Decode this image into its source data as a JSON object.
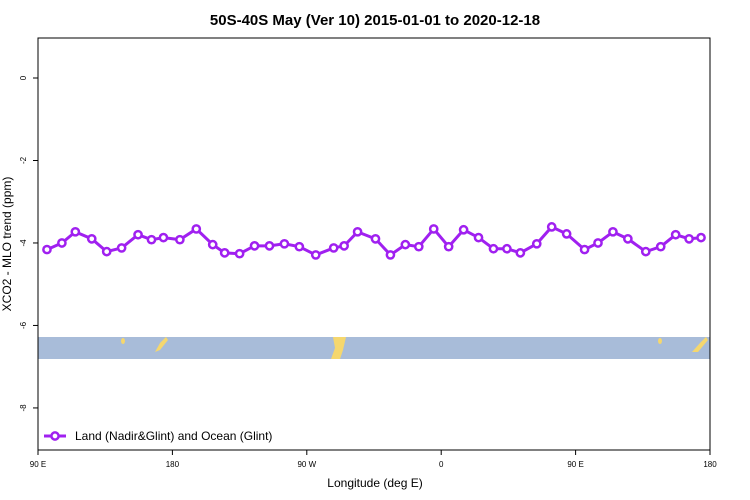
{
  "chart_data": {
    "type": "line",
    "title": "50S-40S May (Ver 10)   2015-01-01 to 2020-12-18",
    "x_label": "Longitude (deg E)",
    "y_label": "XCO2 - MLO trend (ppm)",
    "x": [
      96,
      106,
      115,
      126,
      136,
      146,
      157,
      166,
      174,
      185,
      196,
      207,
      215,
      225,
      235,
      245,
      255,
      265,
      276,
      288,
      295,
      304,
      316,
      326,
      336,
      345,
      355,
      365,
      375,
      385,
      395,
      404,
      413,
      424,
      434,
      444,
      456,
      465,
      475,
      485,
      497,
      507,
      517,
      526,
      534
    ],
    "series": [
      {
        "name": "Land (Nadir&Glint) and Ocean (Glint)",
        "color": "#a020f0",
        "values": [
          -4.16,
          -4.0,
          -3.73,
          -3.9,
          -4.21,
          -4.12,
          -3.8,
          -3.92,
          -3.87,
          -3.92,
          -3.66,
          -4.04,
          -4.24,
          -4.26,
          -4.07,
          -4.07,
          -4.02,
          -4.09,
          -4.29,
          -4.12,
          -4.07,
          -3.73,
          -3.9,
          -4.29,
          -4.04,
          -4.09,
          -3.66,
          -4.09,
          -3.68,
          -3.87,
          -4.14,
          -4.14,
          -4.24,
          -4.02,
          -3.61,
          -3.78,
          -4.16,
          -4.0,
          -3.73,
          -3.9,
          -4.21,
          -4.09,
          -3.8,
          -3.9,
          -3.87
        ]
      }
    ],
    "xlim": [
      90,
      540
    ],
    "xticks": [
      {
        "value": 90,
        "label": "90 E"
      },
      {
        "value": 180,
        "label": "180"
      },
      {
        "value": 270,
        "label": "90 W"
      },
      {
        "value": 360,
        "label": "0"
      },
      {
        "value": 450,
        "label": "90 E"
      },
      {
        "value": 540,
        "label": "180"
      }
    ],
    "ylim": [
      -9.02,
      0.97
    ],
    "yticks": [
      0,
      -2,
      -4,
      -6,
      -8
    ],
    "legend": "bottom-left"
  }
}
